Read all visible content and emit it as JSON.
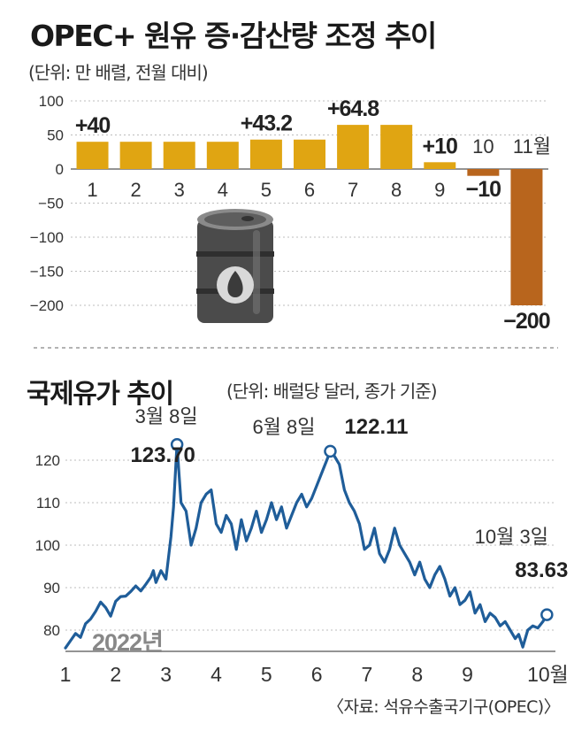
{
  "top_chart": {
    "title": "OPEC+ 원유 증·감산량  조정 추이",
    "unit": "(단위: 만 배렬, 전월 대비)"
  },
  "bottom_chart": {
    "title": "국제유가 추이",
    "unit": "(단위: 배럴당 달러, 종가 기준)",
    "year_label": "2022년"
  },
  "source": "〈자료: 석유수출국기구(OPEC)〉",
  "colors": {
    "bar_positive": "#E0A512",
    "bar_negative": "#B8651D",
    "line": "#1F5D99",
    "grid": "#BDBDBD",
    "barrel_body": "#4B4B4B",
    "barrel_highlight": "#8A8A8A"
  },
  "icons": [
    "oil-barrel-icon"
  ],
  "chart_data": [
    {
      "type": "bar",
      "categories": [
        "1",
        "2",
        "3",
        "4",
        "5",
        "6",
        "7",
        "8",
        "9",
        "10",
        "11월"
      ],
      "values": [
        40,
        40,
        40,
        40,
        43.2,
        43.2,
        64.8,
        64.8,
        10,
        -10,
        -200
      ],
      "data_labels": [
        {
          "index": 0,
          "text": "+40"
        },
        {
          "index": 4,
          "text": "+43.2"
        },
        {
          "index": 6,
          "text": "+64.8"
        },
        {
          "index": 8,
          "text": "+10"
        },
        {
          "index": 9,
          "text": "−10"
        },
        {
          "index": 10,
          "text": "−200"
        }
      ],
      "yticks": [
        100,
        50,
        0,
        -50,
        -100,
        -150,
        -200
      ],
      "ytick_labels": [
        "100",
        "50",
        "0",
        "−50",
        "−100",
        "−150",
        "−200"
      ],
      "ylim": [
        -200,
        100
      ],
      "grid": true
    },
    {
      "type": "line",
      "x_domain": [
        1,
        10.75
      ],
      "x_ticks": [
        1,
        2,
        3,
        4,
        5,
        6,
        7,
        8,
        9,
        10.6
      ],
      "x_tick_labels": [
        "1",
        "2",
        "3",
        "4",
        "5",
        "6",
        "7",
        "8",
        "9",
        "10월"
      ],
      "yticks": [
        120,
        110,
        100,
        90,
        80
      ],
      "ylim": [
        75,
        125
      ],
      "grid": true,
      "series": [
        {
          "points": [
            [
              1.0,
              75.8
            ],
            [
              1.1,
              77.5
            ],
            [
              1.2,
              79.2
            ],
            [
              1.3,
              78.3
            ],
            [
              1.4,
              81.5
            ],
            [
              1.5,
              82.6
            ],
            [
              1.6,
              84.4
            ],
            [
              1.7,
              86.6
            ],
            [
              1.8,
              85.3
            ],
            [
              1.9,
              83.3
            ],
            [
              2.0,
              86.8
            ],
            [
              2.1,
              87.9
            ],
            [
              2.2,
              88.0
            ],
            [
              2.3,
              89.1
            ],
            [
              2.4,
              90.4
            ],
            [
              2.5,
              89.2
            ],
            [
              2.6,
              90.8
            ],
            [
              2.7,
              92.5
            ],
            [
              2.75,
              94.0
            ],
            [
              2.8,
              91.2
            ],
            [
              2.9,
              94.0
            ],
            [
              3.0,
              92.0
            ],
            [
              3.1,
              102.0
            ],
            [
              3.15,
              109.0
            ],
            [
              3.22,
              123.7
            ],
            [
              3.3,
              110.0
            ],
            [
              3.4,
              108.0
            ],
            [
              3.5,
              100.0
            ],
            [
              3.6,
              104.0
            ],
            [
              3.7,
              110.0
            ],
            [
              3.8,
              112.0
            ],
            [
              3.9,
              113.0
            ],
            [
              4.0,
              105.0
            ],
            [
              4.1,
              103.0
            ],
            [
              4.2,
              107.0
            ],
            [
              4.3,
              105.0
            ],
            [
              4.4,
              99.0
            ],
            [
              4.5,
              106.0
            ],
            [
              4.6,
              101.0
            ],
            [
              4.7,
              104.0
            ],
            [
              4.8,
              108.0
            ],
            [
              4.9,
              103.0
            ],
            [
              5.0,
              106.0
            ],
            [
              5.1,
              110.0
            ],
            [
              5.2,
              106.0
            ],
            [
              5.3,
              109.0
            ],
            [
              5.4,
              104.0
            ],
            [
              5.5,
              107.0
            ],
            [
              5.6,
              110.0
            ],
            [
              5.7,
              112.0
            ],
            [
              5.8,
              109.0
            ],
            [
              5.9,
              111.0
            ],
            [
              6.0,
              114.0
            ],
            [
              6.1,
              117.0
            ],
            [
              6.2,
              120.0
            ],
            [
              6.27,
              122.11
            ],
            [
              6.35,
              121.0
            ],
            [
              6.45,
              119.0
            ],
            [
              6.55,
              113.0
            ],
            [
              6.65,
              110.0
            ],
            [
              6.75,
              108.0
            ],
            [
              6.85,
              105.0
            ],
            [
              6.95,
              99.0
            ],
            [
              7.05,
              100.0
            ],
            [
              7.15,
              104.0
            ],
            [
              7.25,
              98.0
            ],
            [
              7.35,
              96.0
            ],
            [
              7.45,
              99.0
            ],
            [
              7.55,
              104.0
            ],
            [
              7.65,
              100.0
            ],
            [
              7.75,
              98.0
            ],
            [
              7.85,
              96.0
            ],
            [
              7.95,
              93.0
            ],
            [
              8.05,
              96.0
            ],
            [
              8.15,
              92.0
            ],
            [
              8.25,
              90.0
            ],
            [
              8.35,
              93.0
            ],
            [
              8.45,
              95.0
            ],
            [
              8.55,
              92.0
            ],
            [
              8.65,
              88.0
            ],
            [
              8.75,
              90.0
            ],
            [
              8.85,
              86.0
            ],
            [
              8.95,
              87.0
            ],
            [
              9.05,
              89.0
            ],
            [
              9.15,
              84.0
            ],
            [
              9.25,
              86.0
            ],
            [
              9.35,
              82.0
            ],
            [
              9.45,
              84.0
            ],
            [
              9.55,
              83.0
            ],
            [
              9.65,
              81.0
            ],
            [
              9.75,
              82.0
            ],
            [
              9.85,
              80.0
            ],
            [
              9.95,
              78.0
            ],
            [
              10.02,
              79.0
            ],
            [
              10.1,
              76.0
            ],
            [
              10.2,
              80.0
            ],
            [
              10.3,
              81.0
            ],
            [
              10.4,
              80.5
            ],
            [
              10.5,
              82.0
            ],
            [
              10.58,
              83.63
            ]
          ]
        }
      ],
      "annotations": [
        {
          "x": 3.22,
          "y": 123.7,
          "date": "3월 8일",
          "value": "123.70"
        },
        {
          "x": 6.27,
          "y": 122.11,
          "date": "6월 8일",
          "value": "122.11"
        },
        {
          "x": 10.58,
          "y": 83.63,
          "date": "10월 3일",
          "value": "83.63"
        }
      ]
    }
  ]
}
